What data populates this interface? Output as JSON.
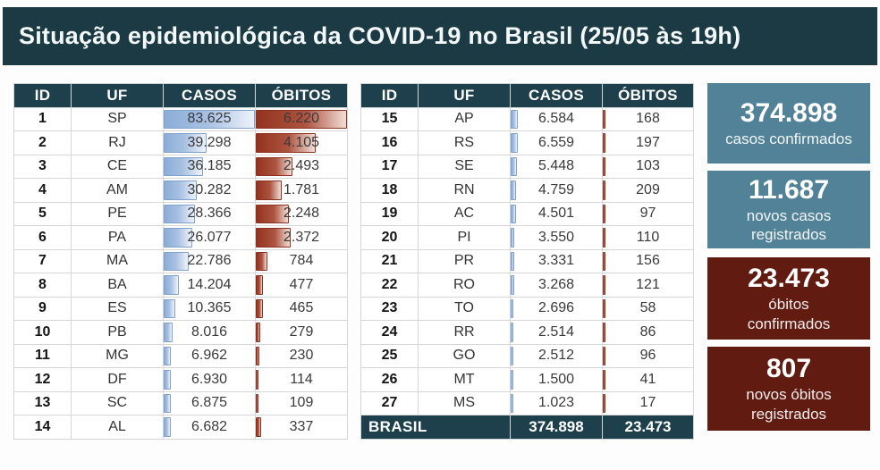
{
  "title": "Situação epidemiológica da COVID-19 no Brasil (25/05 às 19h)",
  "colors": {
    "title_bar": "#1b3a44",
    "table_header": "#1e3f4c",
    "card_teal": "#528298",
    "card_red": "#611b10",
    "bar_blue": "#8cadd8",
    "bar_red": "#93331f"
  },
  "chart_data": {
    "type": "table",
    "title": "Situação epidemiológica da COVID-19 no Brasil (25/05 às 19h)",
    "tables": [
      {
        "headers": [
          "ID",
          "UF",
          "CASOS",
          "ÓBITOS"
        ],
        "rows": [
          [
            "1",
            "SP",
            "83.625",
            "6.220"
          ],
          [
            "2",
            "RJ",
            "39.298",
            "4.105"
          ],
          [
            "3",
            "CE",
            "36.185",
            "2.493"
          ],
          [
            "4",
            "AM",
            "30.282",
            "1.781"
          ],
          [
            "5",
            "PE",
            "28.366",
            "2.248"
          ],
          [
            "6",
            "PA",
            "26.077",
            "2.372"
          ],
          [
            "7",
            "MA",
            "22.786",
            "784"
          ],
          [
            "8",
            "BA",
            "14.204",
            "477"
          ],
          [
            "9",
            "ES",
            "10.365",
            "465"
          ],
          [
            "10",
            "PB",
            "8.016",
            "279"
          ],
          [
            "11",
            "MG",
            "6.962",
            "230"
          ],
          [
            "12",
            "DF",
            "6.930",
            "114"
          ],
          [
            "13",
            "SC",
            "6.875",
            "109"
          ],
          [
            "14",
            "AL",
            "6.682",
            "337"
          ]
        ]
      },
      {
        "headers": [
          "ID",
          "UF",
          "CASOS",
          "ÓBITOS"
        ],
        "rows": [
          [
            "15",
            "AP",
            "6.584",
            "168"
          ],
          [
            "16",
            "RS",
            "6.559",
            "197"
          ],
          [
            "17",
            "SE",
            "5.448",
            "103"
          ],
          [
            "18",
            "RN",
            "4.759",
            "209"
          ],
          [
            "19",
            "AC",
            "4.501",
            "97"
          ],
          [
            "20",
            "PI",
            "3.550",
            "110"
          ],
          [
            "21",
            "PR",
            "3.331",
            "156"
          ],
          [
            "22",
            "RO",
            "3.268",
            "121"
          ],
          [
            "23",
            "TO",
            "2.696",
            "58"
          ],
          [
            "24",
            "RR",
            "2.514",
            "86"
          ],
          [
            "25",
            "GO",
            "2.512",
            "96"
          ],
          [
            "26",
            "MT",
            "1.500",
            "41"
          ],
          [
            "27",
            "MS",
            "1.023",
            "17"
          ]
        ],
        "footer": [
          "BRASIL",
          "374.898",
          "23.473"
        ]
      }
    ],
    "cards": [
      {
        "value": "374.898",
        "label": "casos confirmados",
        "style": "teal"
      },
      {
        "value": "11.687",
        "label": "novos casos\nregistrados",
        "style": "teal"
      },
      {
        "value": "23.473",
        "label": "óbitos\nconfirmados",
        "style": "red"
      },
      {
        "value": "807",
        "label": "novos óbitos\nregistrados",
        "style": "red"
      }
    ],
    "bar_scale": {
      "cases_max": 83625,
      "deaths_max": 6220
    }
  }
}
